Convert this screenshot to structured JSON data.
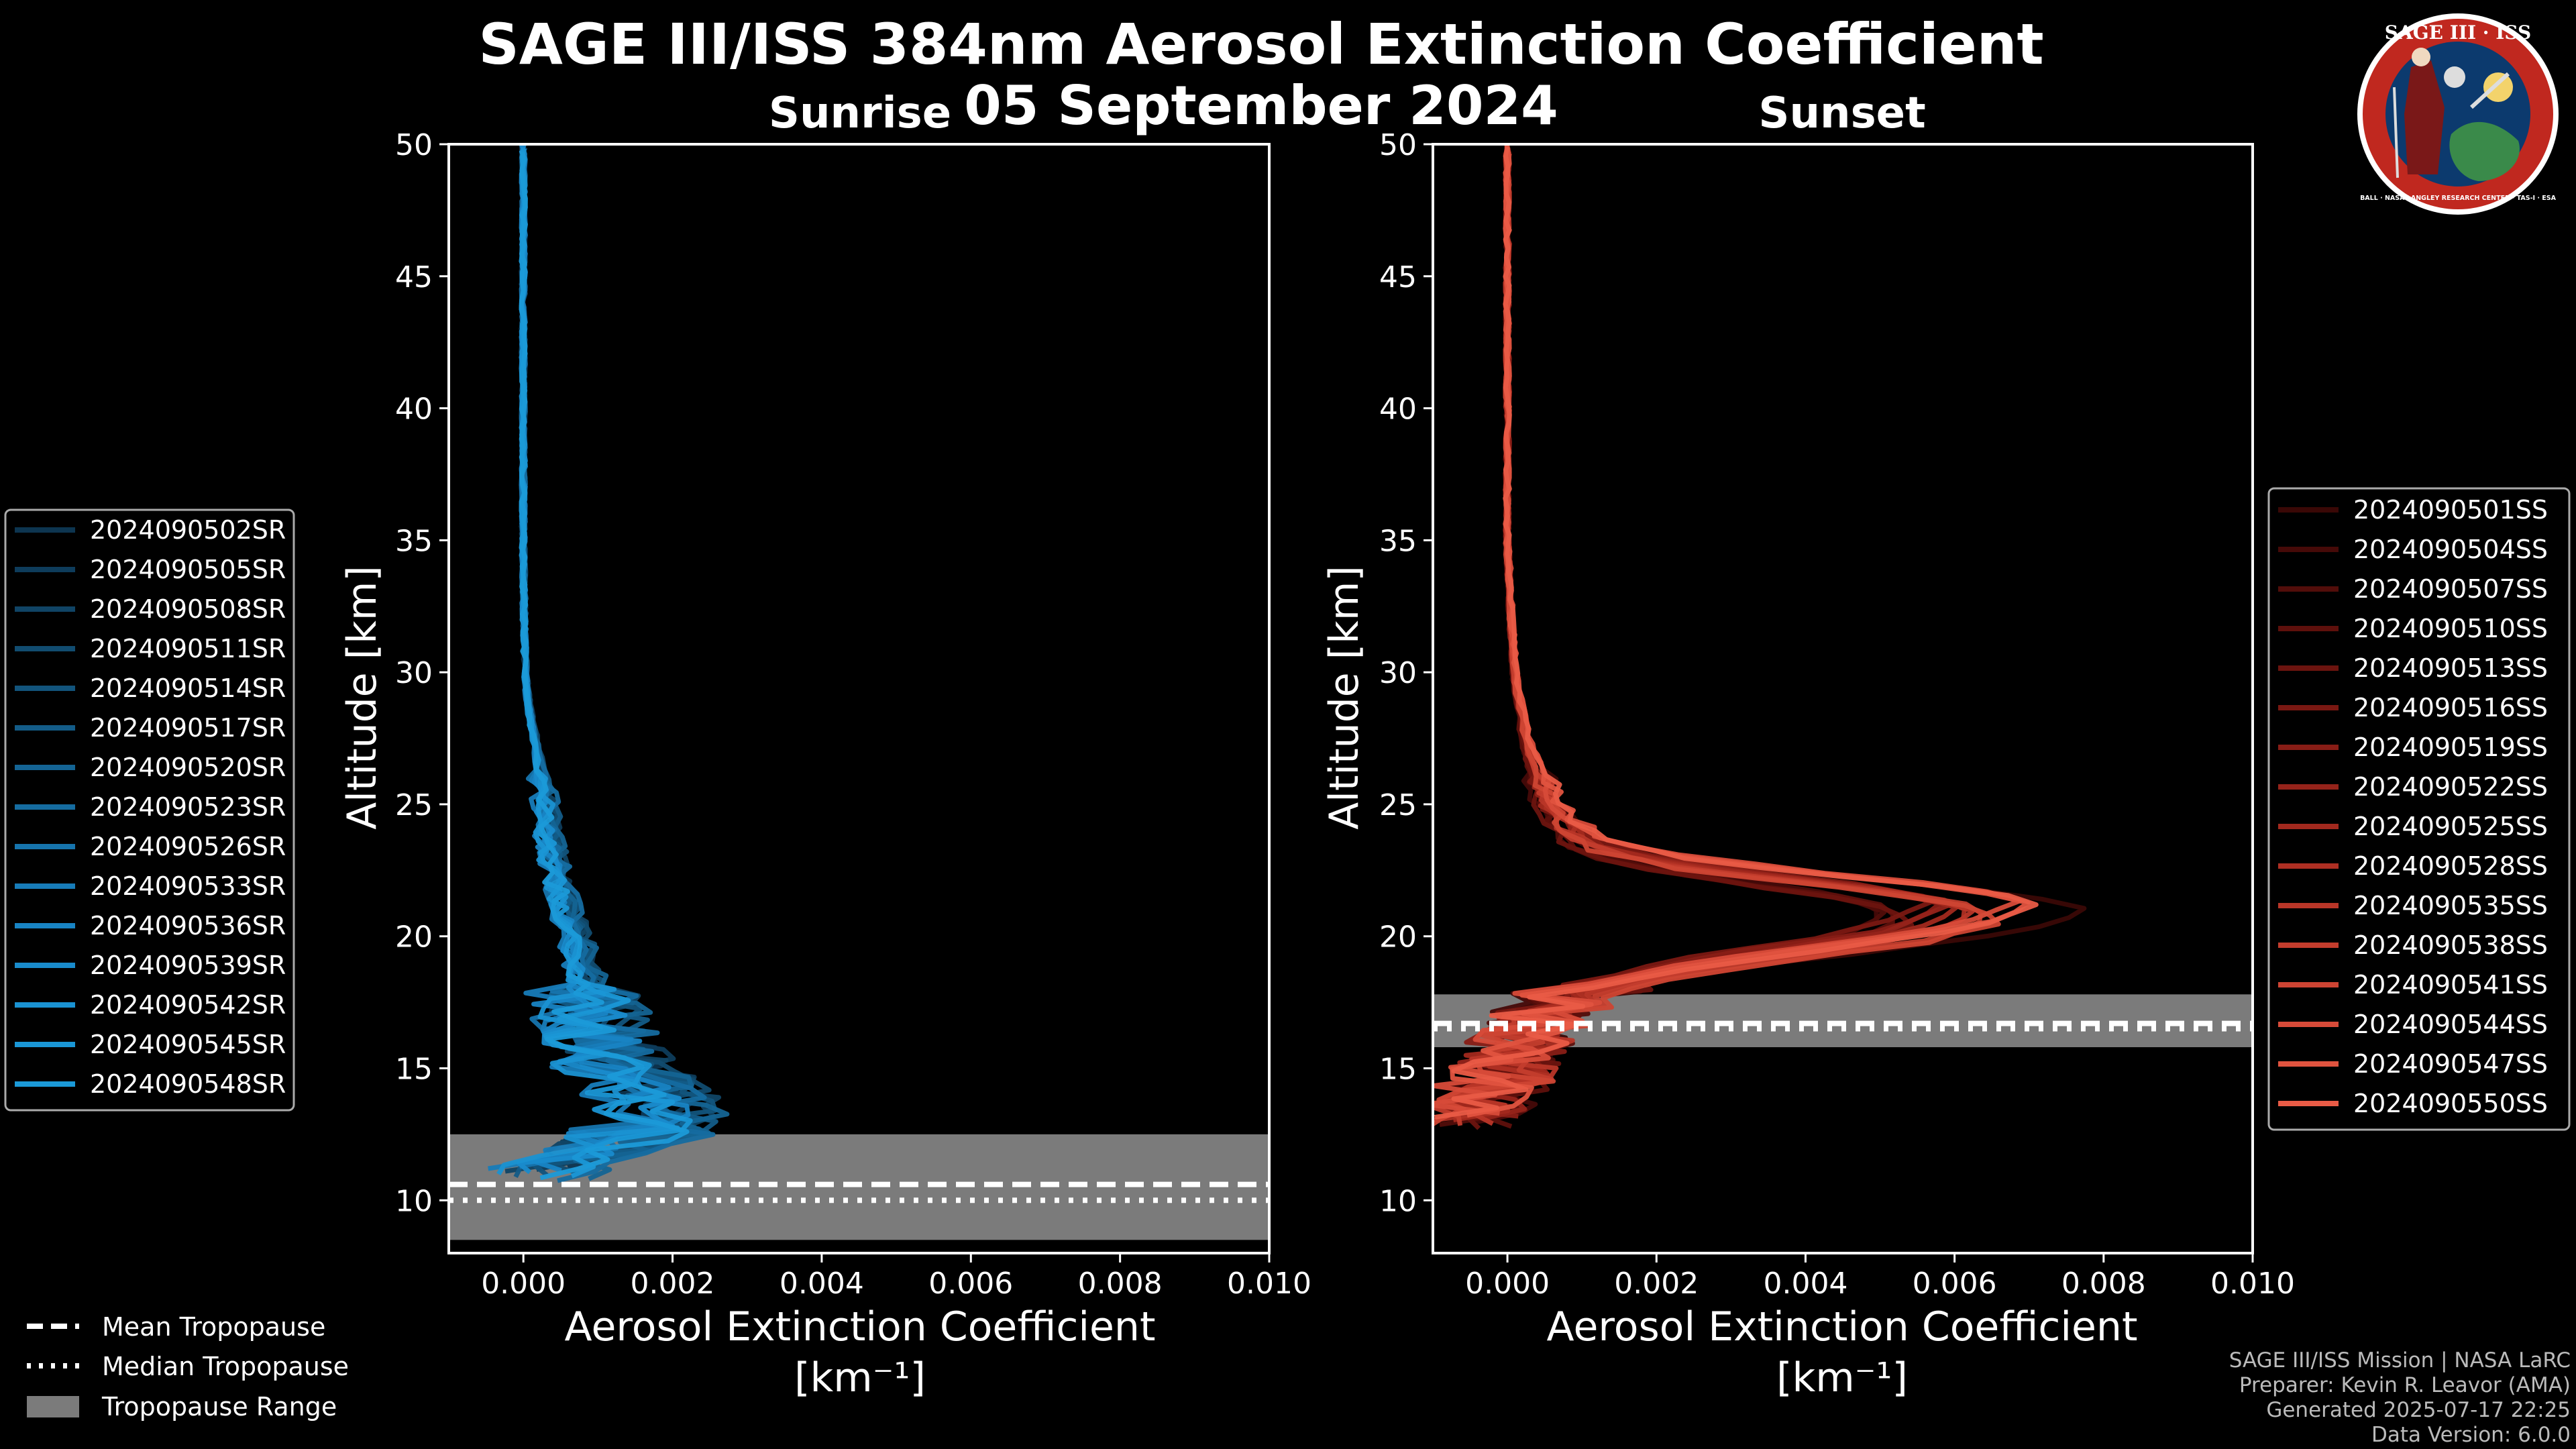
{
  "figure": {
    "title_line1": "SAGE III/ISS 384nm Aerosol Extinction Coefficient",
    "title_line2": "05 September 2024"
  },
  "logo": {
    "top_text": "SAGE III · ISS",
    "ring_text": "BALL · NASA LANGLEY RESEARCH CENTER · TAS-I · ESA",
    "colors": {
      "ring": "#c0281f",
      "inner": "#0c3a6e",
      "land": "#3a8a4a",
      "sun": "#f3d36b"
    }
  },
  "footer": {
    "line1": "SAGE III/ISS Mission | NASA LaRC",
    "line2": "Preparer: Kevin R. Leavor (AMA)",
    "line3": "Generated 2025-07-17 22:25",
    "line4": "Data Version: 6.0.0"
  },
  "tropo_legend": {
    "mean": "Mean Tropopause",
    "median": "Median Tropopause",
    "range": "Tropopause Range"
  },
  "chart_data": [
    {
      "type": "line",
      "panel": "sunrise",
      "title": "Sunrise",
      "xlabel": "Aerosol Extinction Coefficient",
      "xunit": "[km⁻¹]",
      "ylabel": "Altitude [km]",
      "xlim": [
        -0.001,
        0.01
      ],
      "ylim": [
        8,
        50
      ],
      "xticks": [
        0.0,
        0.002,
        0.004,
        0.006,
        0.008,
        0.01
      ],
      "xtick_labels": [
        "0.000",
        "0.002",
        "0.004",
        "0.006",
        "0.008",
        "0.010"
      ],
      "yticks": [
        10,
        15,
        20,
        25,
        30,
        35,
        40,
        45,
        50
      ],
      "color": "#1b9ad8",
      "tropopause": {
        "mean": 10.6,
        "median": 10.0,
        "range": [
          8.5,
          12.5
        ]
      },
      "base_profile": {
        "altitude": [
          11,
          12,
          13,
          14,
          15,
          16,
          17,
          18,
          19,
          20,
          21,
          22,
          23,
          24,
          25,
          26,
          27,
          28,
          29,
          30,
          32,
          35,
          40,
          45,
          50
        ],
        "extinction": [
          0.0002,
          0.001,
          0.002,
          0.0018,
          0.0013,
          0.0011,
          0.001,
          0.0009,
          0.0008,
          0.0007,
          0.0006,
          0.0005,
          0.0004,
          0.00035,
          0.0003,
          0.00025,
          0.0002,
          0.00012,
          6e-05,
          3e-05,
          1e-05,
          0.0,
          0.0,
          0.0,
          0.0
        ]
      },
      "series": [
        {
          "name": "2024090502SR"
        },
        {
          "name": "2024090505SR"
        },
        {
          "name": "2024090508SR"
        },
        {
          "name": "2024090511SR"
        },
        {
          "name": "2024090514SR"
        },
        {
          "name": "2024090517SR"
        },
        {
          "name": "2024090520SR"
        },
        {
          "name": "2024090523SR"
        },
        {
          "name": "2024090526SR"
        },
        {
          "name": "2024090533SR"
        },
        {
          "name": "2024090536SR"
        },
        {
          "name": "2024090539SR"
        },
        {
          "name": "2024090542SR"
        },
        {
          "name": "2024090545SR"
        },
        {
          "name": "2024090548SR"
        }
      ],
      "series_colors": [
        "#0d3550",
        "#0e3c5b",
        "#104465",
        "#114c70",
        "#12547c",
        "#135c88",
        "#146494",
        "#156ca0",
        "#1674ad",
        "#177cb9",
        "#1884c4",
        "#198bcc",
        "#1a92d2",
        "#1a97d6",
        "#1b9ad8"
      ]
    },
    {
      "type": "line",
      "panel": "sunset",
      "title": "Sunset",
      "xlabel": "Aerosol Extinction Coefficient",
      "xunit": "[km⁻¹]",
      "ylabel": "Altitude [km]",
      "xlim": [
        -0.001,
        0.01
      ],
      "ylim": [
        8,
        50
      ],
      "xticks": [
        0.0,
        0.002,
        0.004,
        0.006,
        0.008,
        0.01
      ],
      "xtick_labels": [
        "0.000",
        "0.002",
        "0.004",
        "0.006",
        "0.008",
        "0.010"
      ],
      "yticks": [
        10,
        15,
        20,
        25,
        30,
        35,
        40,
        45,
        50
      ],
      "color": "#ee5a4a",
      "tropopause": {
        "mean": 16.7,
        "median": 16.5,
        "range": [
          15.8,
          17.8
        ]
      },
      "base_profile": {
        "altitude": [
          13,
          14,
          15,
          16,
          17,
          18,
          19,
          20,
          20.5,
          21,
          21.5,
          22,
          22.5,
          23,
          23.5,
          24,
          24.5,
          25,
          26,
          27,
          28,
          29,
          30,
          32,
          35,
          40,
          45,
          50
        ],
        "extinction": [
          -0.0005,
          -0.0003,
          0.0,
          0.0002,
          0.0004,
          0.001,
          0.003,
          0.0055,
          0.0062,
          0.0065,
          0.006,
          0.0045,
          0.003,
          0.0018,
          0.0012,
          0.0009,
          0.0007,
          0.0006,
          0.00045,
          0.0003,
          0.00022,
          0.00015,
          0.0001,
          5e-05,
          0.0,
          0.0,
          0.0,
          0.0
        ]
      },
      "series": [
        {
          "name": "2024090501SS"
        },
        {
          "name": "2024090504SS"
        },
        {
          "name": "2024090507SS"
        },
        {
          "name": "2024090510SS"
        },
        {
          "name": "2024090513SS"
        },
        {
          "name": "2024090516SS"
        },
        {
          "name": "2024090519SS"
        },
        {
          "name": "2024090522SS"
        },
        {
          "name": "2024090525SS"
        },
        {
          "name": "2024090528SS"
        },
        {
          "name": "2024090535SS"
        },
        {
          "name": "2024090538SS"
        },
        {
          "name": "2024090541SS"
        },
        {
          "name": "2024090544SS"
        },
        {
          "name": "2024090547SS"
        },
        {
          "name": "2024090550SS"
        }
      ],
      "series_colors": [
        "#3a0806",
        "#460a08",
        "#520d0a",
        "#5e100c",
        "#6c140f",
        "#7a1812",
        "#881d16",
        "#95231a",
        "#a2291e",
        "#ae2f23",
        "#b93628",
        "#c33d2d",
        "#cd4433",
        "#d74b39",
        "#e0533f",
        "#e95b46"
      ]
    }
  ]
}
